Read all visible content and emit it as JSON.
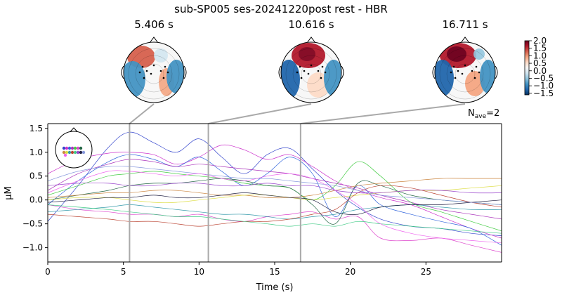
{
  "figure": {
    "title": "sub-SP005 ses-20241220post rest - HBR"
  },
  "topomaps": [
    {
      "label": "5.406 s",
      "time": 5.406
    },
    {
      "label": "10.616 s",
      "time": 10.616
    },
    {
      "label": "16.711 s",
      "time": 16.711
    }
  ],
  "colorbar": {
    "ticks": [
      "2.0",
      "1.5",
      "1.0",
      "0.5",
      "0.0",
      "−0.5",
      "−1.0",
      "−1.5"
    ],
    "range": [
      -1.6,
      2.0
    ],
    "colors": [
      "#053061",
      "#2166ac",
      "#4393c3",
      "#92c5de",
      "#d1e5f0",
      "#f7f7f7",
      "#fddbc7",
      "#f4a582",
      "#d6604d",
      "#b2182b",
      "#67001f"
    ]
  },
  "nave": {
    "prefix": "N",
    "subscript": "ave",
    "suffix": "=2"
  },
  "colors": {
    "highlight_line": "#a9a9a9",
    "axes": "#000000"
  },
  "chart_data": {
    "type": "line",
    "title": "sub-SP005 ses-20241220post rest - HBR",
    "xlabel": "Time (s)",
    "ylabel": "µM",
    "xlim": [
      0,
      30
    ],
    "ylim": [
      -1.3,
      1.6
    ],
    "xticks": [
      0,
      5,
      10,
      15,
      20,
      25
    ],
    "yticks": [
      -1.0,
      -0.5,
      0.0,
      0.5,
      1.0,
      1.5
    ],
    "xtick_labels": [
      "0",
      "5",
      "10",
      "15",
      "20",
      "25"
    ],
    "ytick_labels": [
      "−1.0",
      "−0.5",
      "0.0",
      "0.5",
      "1.0",
      "1.5"
    ],
    "vlines": [
      5.406,
      10.616,
      16.711
    ],
    "x": [
      0,
      2,
      4,
      5.4,
      7,
      8.5,
      10,
      11.5,
      13,
      14.5,
      16,
      17.5,
      19,
      20.5,
      22,
      24,
      26,
      28,
      30
    ],
    "series": [
      {
        "color": "#3344cc",
        "values": [
          -0.45,
          0.3,
          1.1,
          1.42,
          1.2,
          1.0,
          1.28,
          0.9,
          0.55,
          0.95,
          1.08,
          0.65,
          0.2,
          -0.15,
          -0.4,
          -0.55,
          -0.6,
          -0.7,
          -0.75
        ]
      },
      {
        "color": "#cc33cc",
        "values": [
          0.55,
          0.85,
          0.98,
          1.0,
          0.95,
          0.75,
          0.9,
          1.15,
          1.05,
          0.85,
          0.95,
          0.7,
          0.4,
          0.2,
          0.05,
          -0.1,
          -0.35,
          -0.6,
          -0.8
        ]
      },
      {
        "color": "#3366dd",
        "values": [
          -0.1,
          0.4,
          0.8,
          0.95,
          0.85,
          0.7,
          0.9,
          0.6,
          0.3,
          0.55,
          0.9,
          0.55,
          -0.35,
          0.3,
          -0.1,
          -0.3,
          -0.45,
          -0.6,
          -0.95
        ]
      },
      {
        "color": "#aa33bb",
        "values": [
          0.2,
          0.55,
          0.75,
          0.85,
          0.8,
          0.7,
          0.75,
          0.7,
          0.65,
          0.6,
          0.55,
          0.45,
          0.35,
          0.25,
          0.1,
          -0.05,
          -0.2,
          -0.3,
          -0.4
        ]
      },
      {
        "color": "#44cc44",
        "values": [
          0.1,
          0.3,
          0.5,
          0.55,
          0.6,
          0.55,
          0.5,
          0.45,
          0.35,
          0.3,
          0.25,
          0.0,
          0.3,
          0.8,
          0.5,
          -0.05,
          -0.25,
          -0.45,
          -0.65
        ]
      },
      {
        "color": "#dd44cc",
        "values": [
          -0.1,
          -0.2,
          -0.25,
          -0.3,
          -0.3,
          -0.35,
          -0.3,
          -0.4,
          -0.45,
          -0.35,
          -0.3,
          -0.25,
          -0.4,
          -0.35,
          -0.8,
          -0.85,
          -0.8,
          -0.95,
          -1.1
        ]
      },
      {
        "color": "#226644",
        "values": [
          0.0,
          0.1,
          0.2,
          0.3,
          0.35,
          0.35,
          0.4,
          0.45,
          0.4,
          0.3,
          0.25,
          -0.1,
          -0.5,
          0.35,
          0.3,
          0.1,
          0.0,
          -0.05,
          -0.1
        ]
      },
      {
        "color": "#cc8844",
        "values": [
          0.05,
          0.1,
          0.15,
          0.15,
          0.2,
          0.2,
          0.15,
          0.1,
          0.1,
          0.05,
          0.05,
          0.1,
          0.2,
          0.3,
          0.35,
          0.4,
          0.45,
          0.45,
          0.45
        ]
      },
      {
        "color": "#dddd44",
        "values": [
          0.0,
          0.05,
          0.05,
          0.0,
          -0.05,
          -0.05,
          0.0,
          0.05,
          0.1,
          0.1,
          0.05,
          0.0,
          0.05,
          0.1,
          0.15,
          0.2,
          0.2,
          0.25,
          0.3
        ]
      },
      {
        "color": "#3399aa",
        "values": [
          -0.25,
          -0.2,
          -0.15,
          -0.1,
          -0.15,
          -0.2,
          -0.25,
          -0.3,
          -0.3,
          -0.35,
          -0.4,
          -0.35,
          -0.3,
          -0.2,
          -0.15,
          -0.1,
          -0.15,
          -0.2,
          -0.2
        ]
      },
      {
        "color": "#bb4433",
        "values": [
          -0.3,
          -0.35,
          -0.4,
          -0.45,
          -0.45,
          -0.5,
          -0.55,
          -0.5,
          -0.45,
          -0.45,
          -0.4,
          -0.3,
          -0.2,
          0.15,
          0.3,
          0.25,
          0.1,
          -0.05,
          -0.15
        ]
      },
      {
        "color": "#44cc88",
        "values": [
          -0.1,
          -0.15,
          -0.2,
          -0.25,
          -0.3,
          -0.35,
          -0.35,
          -0.4,
          -0.45,
          -0.5,
          -0.55,
          -0.5,
          -0.55,
          -0.45,
          -0.5,
          -0.55,
          -0.6,
          -0.65,
          -0.7
        ]
      },
      {
        "color": "#9944cc",
        "values": [
          0.3,
          0.35,
          0.35,
          0.3,
          0.3,
          0.35,
          0.35,
          0.3,
          0.3,
          0.35,
          0.3,
          0.3,
          0.2,
          0.15,
          0.15,
          0.2,
          0.2,
          0.15,
          0.15
        ]
      },
      {
        "color": "#222244",
        "values": [
          -0.05,
          0.0,
          0.05,
          0.05,
          0.1,
          0.05,
          0.05,
          0.1,
          0.15,
          0.1,
          0.05,
          0.0,
          -0.25,
          -0.3,
          -0.15,
          -0.1,
          -0.1,
          -0.05,
          0.0
        ]
      },
      {
        "color": "#8899dd",
        "values": [
          0.4,
          0.6,
          0.7,
          0.7,
          0.65,
          0.6,
          0.55,
          0.5,
          0.45,
          0.45,
          0.4,
          0.35,
          0.3,
          0.2,
          0.1,
          0.05,
          0.0,
          -0.05,
          -0.1
        ]
      },
      {
        "color": "#ee66ee",
        "values": [
          0.15,
          0.4,
          0.6,
          0.6,
          0.55,
          0.5,
          0.55,
          0.45,
          0.4,
          0.5,
          0.55,
          0.45,
          0.2,
          -0.1,
          -0.5,
          -0.7,
          -0.8,
          -0.85,
          -0.9
        ]
      }
    ]
  }
}
